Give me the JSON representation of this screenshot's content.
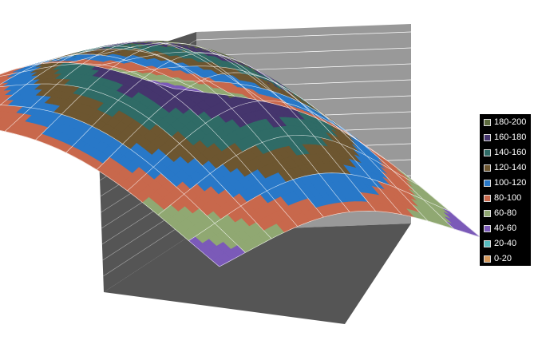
{
  "chart_data": {
    "type": "surface3d",
    "title": "",
    "xlabel": "",
    "ylabel": "",
    "zlabel": "",
    "zlim": [
      0,
      200
    ],
    "grid": true,
    "legend_position": "right",
    "bands": [
      {
        "range": [
          180,
          200
        ],
        "label": "180-200",
        "color": "#5d6b3e"
      },
      {
        "range": [
          160,
          180
        ],
        "label": "160-180",
        "color": "#45356d"
      },
      {
        "range": [
          140,
          160
        ],
        "label": "140-160",
        "color": "#2f6b66"
      },
      {
        "range": [
          120,
          140
        ],
        "label": "120-140",
        "color": "#6d5630"
      },
      {
        "range": [
          100,
          120
        ],
        "label": "100-120",
        "color": "#2878c8"
      },
      {
        "range": [
          80,
          100
        ],
        "label": "80-100",
        "color": "#c8684c"
      },
      {
        "range": [
          60,
          80
        ],
        "label": "60-80",
        "color": "#90a872"
      },
      {
        "range": [
          40,
          60
        ],
        "label": "40-60",
        "color": "#7b5ab8"
      },
      {
        "range": [
          20,
          40
        ],
        "label": "20-40",
        "color": "#56bcc0"
      },
      {
        "range": [
          0,
          20
        ],
        "label": "0-20",
        "color": "#d4985a"
      }
    ],
    "surface": {
      "function": "peak",
      "peak_value": 200,
      "grid_size": 11
    }
  }
}
